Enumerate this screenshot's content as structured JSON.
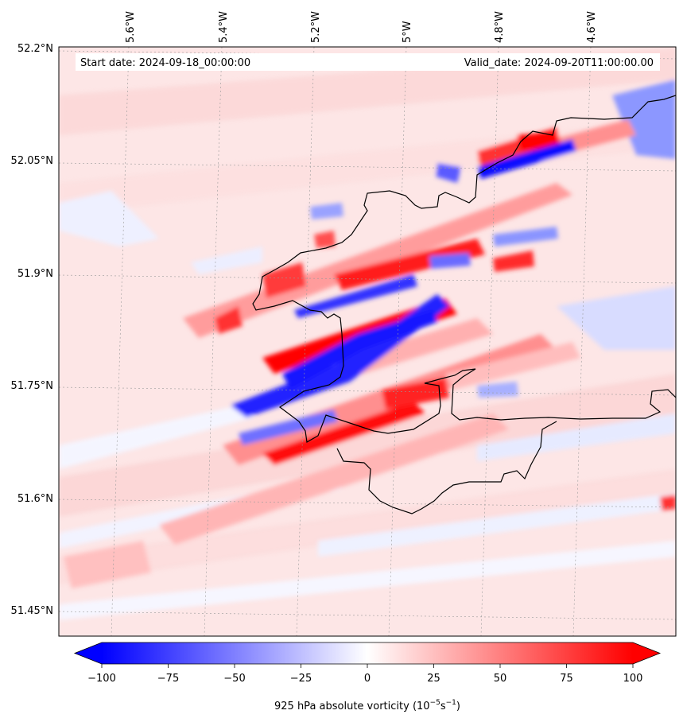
{
  "header": {
    "start_date": "Start date: 2024-09-18_00:00:00",
    "valid_date": "Valid_date: 2024-09-20T11:00:00.00"
  },
  "longitude_ticks": [
    "5.6°W",
    "5.4°W",
    "5.2°W",
    "5°W",
    "4.8°W",
    "4.6°W"
  ],
  "latitude_ticks": [
    "52.2°N",
    "52.05°N",
    "51.9°N",
    "51.75°N",
    "51.6°N",
    "51.45°N"
  ],
  "colorbar": {
    "ticks": [
      "−100",
      "−75",
      "−50",
      "−25",
      "0",
      "25",
      "50",
      "75",
      "100"
    ],
    "label": "925 hPa absolute vorticity (10",
    "label_unit_exp1": "−5",
    "label_unit_mid": "s",
    "label_unit_exp2": "−1",
    "label_close": ")",
    "colors": {
      "min": "#0000ff",
      "mid": "#ffffff",
      "max": "#ff0000"
    }
  },
  "map": {
    "coastline_color": "#000000",
    "gridline_style": "dotted-grey",
    "field": "absolute vorticity"
  }
}
